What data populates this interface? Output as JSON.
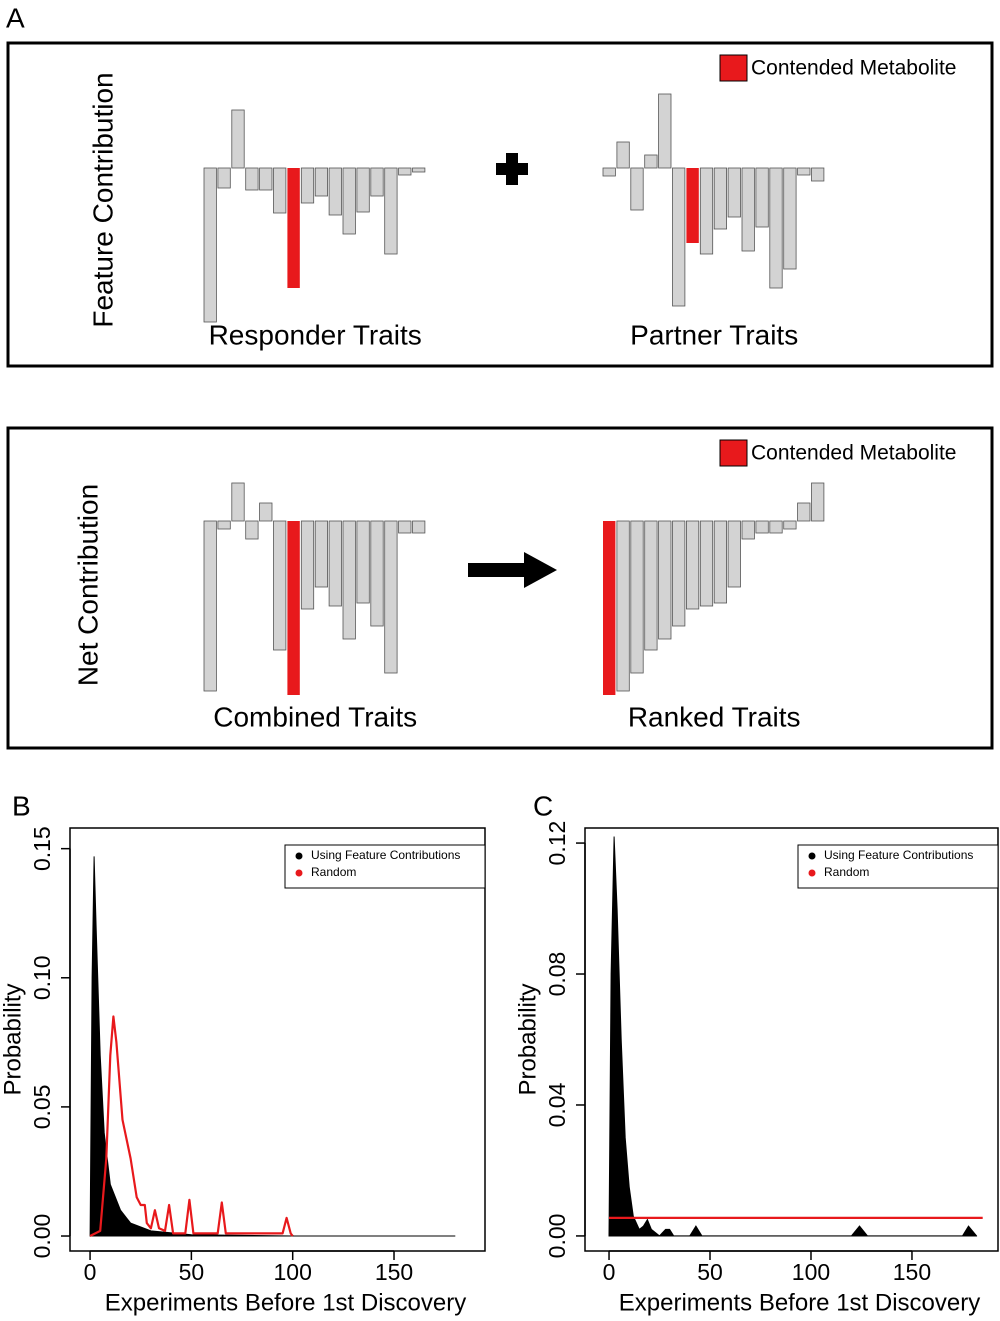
{
  "chart_data": [
    {
      "type": "bar",
      "panel_label": "A",
      "ylabel": "Feature Contribution",
      "legend": "Contended Metabolite",
      "color": "#d3d3d3",
      "highlight_color": "#e8191c",
      "plots": [
        {
          "label": "Responder Traits",
          "highlight": 6,
          "values": [
            -154,
            -20,
            58,
            -22,
            -22,
            -45,
            -120,
            -35,
            -28,
            -47,
            -66,
            -44,
            -28,
            -86,
            -7,
            -4
          ]
        },
        {
          "label": "Partner Traits",
          "highlight": 6,
          "values": [
            -8,
            26,
            -42,
            13,
            74,
            -138,
            -75,
            -86,
            -61,
            -49,
            -83,
            -59,
            -120,
            -101,
            -7,
            -13
          ]
        }
      ]
    },
    {
      "type": "bar",
      "ylabel": "Net Contribution",
      "legend": "Contended Metabolite",
      "color": "#d3d3d3",
      "highlight_color": "#e8191c",
      "plots": [
        {
          "label": "Combined Traits",
          "highlight": 6,
          "values": [
            -170,
            -8,
            38,
            -18,
            18,
            -129,
            -174,
            -88,
            -66,
            -85,
            -118,
            -82,
            -105,
            -152,
            -12,
            -12
          ]
        },
        {
          "label": "Ranked Traits",
          "highlight": 0,
          "values": [
            -174,
            -170,
            -152,
            -129,
            -118,
            -105,
            -88,
            -85,
            -82,
            -66,
            -18,
            -12,
            -12,
            -8,
            18,
            38
          ]
        }
      ]
    },
    {
      "type": "line",
      "panel_label": "B",
      "xlabel": "Experiments Before 1st Discovery",
      "ylabel": "Probability",
      "xlim": [
        -9.9,
        194.9
      ],
      "ylim": [
        -0.0058,
        0.158
      ],
      "xticks": [
        0,
        50,
        100,
        150
      ],
      "yticks": [
        {
          "value": 0,
          "label": "0.00"
        },
        {
          "value": 0.05,
          "label": "0.05"
        },
        {
          "value": 0.1,
          "label": "0.10"
        },
        {
          "value": 0.15,
          "label": "0.15"
        }
      ],
      "legend": "top right",
      "series": [
        {
          "name": "Using Feature Contributions",
          "color": "#000000",
          "fill": true,
          "x": [
            0,
            1,
            2,
            3,
            5,
            7,
            10,
            15,
            20,
            30,
            50,
            100,
            180
          ],
          "values": [
            0,
            0.1,
            0.147,
            0.12,
            0.07,
            0.04,
            0.02,
            0.01,
            0.005,
            0.002,
            0.0005,
            0,
            0
          ]
        },
        {
          "name": "Random",
          "color": "#e8191c",
          "fill": false,
          "x": [
            0,
            5,
            8,
            10,
            11.5,
            13,
            16,
            20,
            23,
            25,
            27,
            28,
            30,
            32,
            34,
            37,
            39,
            41,
            47,
            49,
            51,
            63,
            65,
            67,
            95,
            97,
            99,
            100
          ],
          "values": [
            0,
            0.002,
            0.03,
            0.07,
            0.085,
            0.075,
            0.045,
            0.03,
            0.015,
            0.012,
            0.012,
            0.005,
            0.003,
            0.01,
            0.003,
            0.002,
            0.012,
            0.001,
            0.001,
            0.014,
            0.001,
            0.001,
            0.013,
            0.001,
            0.001,
            0.007,
            0.001,
            0
          ]
        }
      ]
    },
    {
      "type": "line",
      "panel_label": "C",
      "xlabel": "Experiments Before 1st Discovery",
      "ylabel": "Probability",
      "xlim": [
        -11.9,
        192.6
      ],
      "ylim": [
        -0.0046,
        0.1246
      ],
      "xticks": [
        0,
        50,
        100,
        150
      ],
      "yticks": [
        {
          "value": 0,
          "label": "0.00"
        },
        {
          "value": 0.04,
          "label": "0.04"
        },
        {
          "value": 0.08,
          "label": "0.08"
        },
        {
          "value": 0.12,
          "label": "0.12"
        }
      ],
      "legend": "top right",
      "series": [
        {
          "name": "Using Feature Contributions",
          "color": "#000000",
          "fill": true,
          "x": [
            0,
            1,
            2.5,
            4,
            6,
            8,
            10,
            12,
            15,
            17,
            19,
            21,
            25,
            28,
            30,
            32,
            40,
            43,
            46,
            120,
            124,
            128,
            175,
            178,
            182
          ],
          "values": [
            0,
            0.08,
            0.122,
            0.1,
            0.06,
            0.03,
            0.015,
            0.006,
            0.002,
            0.003,
            0.005,
            0.002,
            0,
            0.002,
            0.002,
            0,
            0,
            0.003,
            0,
            0,
            0.003,
            0,
            0,
            0.003,
            0
          ]
        },
        {
          "name": "Random",
          "color": "#e8191c",
          "fill": false,
          "x": [
            0,
            185
          ],
          "values": [
            0.0055,
            0.0055
          ]
        }
      ]
    }
  ]
}
